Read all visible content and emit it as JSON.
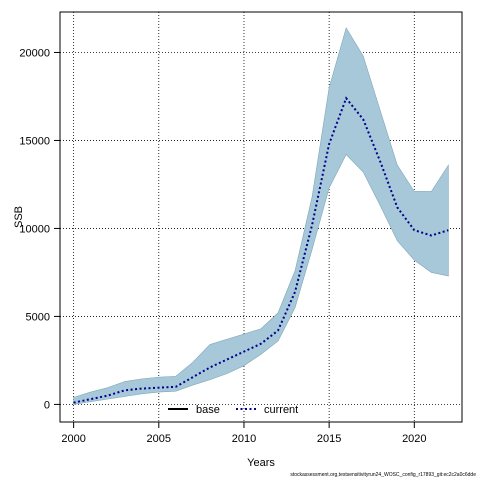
{
  "chart_data": {
    "type": "line",
    "xlabel": "Years",
    "ylabel": "SSB",
    "xlim": [
      1999.2,
      2022.8
    ],
    "ylim": [
      -1000,
      22300
    ],
    "x_ticks": [
      2000,
      2005,
      2010,
      2015,
      2020
    ],
    "y_ticks": [
      0,
      5000,
      10000,
      15000,
      20000
    ],
    "grid": true,
    "legend_position": "bottom-center",
    "series": [
      {
        "name": "base",
        "color": "#000000",
        "style": "solid",
        "x": [],
        "values": []
      },
      {
        "name": "current",
        "color": "#00008b",
        "style": "dotted",
        "x": [
          2000,
          2001,
          2002,
          2003,
          2004,
          2005,
          2006,
          2007,
          2008,
          2009,
          2010,
          2011,
          2012,
          2013,
          2014,
          2015,
          2016,
          2017,
          2018,
          2019,
          2020,
          2021,
          2022
        ],
        "values": [
          100,
          300,
          500,
          800,
          900,
          950,
          1000,
          1550,
          2100,
          2550,
          3000,
          3450,
          4200,
          6400,
          10200,
          14800,
          17400,
          16200,
          13800,
          11200,
          9900,
          9600,
          9900
        ],
        "band_lower": [
          0,
          150,
          300,
          450,
          600,
          700,
          750,
          1100,
          1400,
          1750,
          2200,
          2850,
          3600,
          5500,
          8800,
          12300,
          14200,
          13200,
          11300,
          9300,
          8200,
          7500,
          7300
        ],
        "band_upper": [
          400,
          700,
          950,
          1300,
          1450,
          1550,
          1600,
          2400,
          3400,
          3700,
          4000,
          4300,
          5200,
          7600,
          11800,
          18000,
          21400,
          19800,
          16700,
          13600,
          12100,
          12100,
          13600
        ],
        "band_color": "#a6c8d8"
      }
    ]
  },
  "footnote": "stockassessment.org,testsensitivityrun24_WOSC_config_r17893_git:ec2c2a0c6dde"
}
